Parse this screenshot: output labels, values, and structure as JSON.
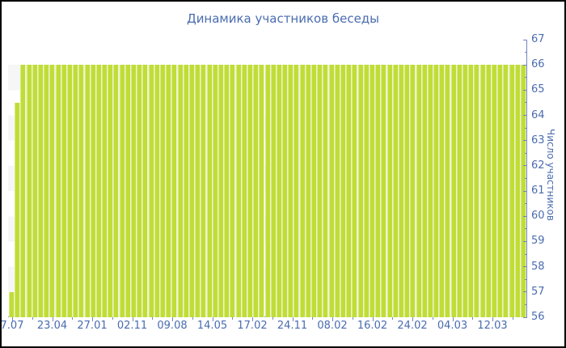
{
  "title": "Динамика участников беседы",
  "chart_data": {
    "type": "bar",
    "title": "Динамика участников беседы",
    "xlabel": "",
    "ylabel": "Число участников",
    "ylim": [
      56,
      67
    ],
    "y_tick_labels": [
      "56",
      "57",
      "58",
      "59",
      "60",
      "61",
      "62",
      "63",
      "64",
      "65",
      "66",
      "67"
    ],
    "y_minor_tick_step": 0.5,
    "x_tick_labels": [
      "7.07",
      "23.04",
      "27.01",
      "02.11",
      "09.08",
      "14.05",
      "17.02",
      "24.11",
      "08.02",
      "16.02",
      "24.02",
      "04.03",
      "12.03"
    ],
    "grid": "alternating horizontal bands, one unit tall",
    "legend": null,
    "values": [
      57,
      64.5,
      66,
      66,
      66,
      66,
      66,
      66,
      66,
      66,
      66,
      66,
      66,
      66,
      66,
      66,
      66,
      66,
      66,
      66,
      66,
      66,
      66,
      66,
      66,
      66,
      66,
      66,
      66,
      66,
      66,
      66,
      66,
      66,
      66,
      66,
      66,
      66,
      66,
      66,
      66,
      66,
      66,
      66,
      66,
      66,
      66,
      66,
      66,
      66,
      66,
      66,
      66,
      66,
      66,
      66,
      66,
      66,
      66,
      66,
      66,
      66,
      66,
      66,
      66,
      66,
      66,
      66,
      66,
      66,
      66,
      66,
      66,
      66,
      66,
      66,
      66,
      66,
      66,
      66,
      66,
      66,
      66,
      66,
      66,
      66,
      66,
      66,
      66
    ],
    "colors": {
      "bar": "#c0dd37",
      "bar_edge_highlight": "#d9ea85",
      "bar_gap": "#edf3d2",
      "axis_line": "#7186bd",
      "text": "#4a6cb0",
      "band": "#f6f6f6",
      "background": "#ffffff",
      "image_border": "#000000"
    }
  }
}
